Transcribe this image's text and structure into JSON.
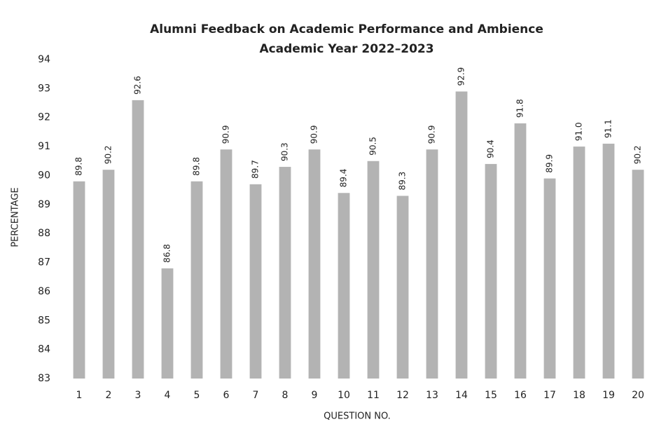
{
  "chart_data": {
    "type": "bar",
    "title": "Alumni Feedback on Academic Performance and Ambience",
    "subtitle": "Academic Year 2022–2023",
    "x_label": "QUESTION NO.",
    "y_label": "PERCENTAGE",
    "categories": [
      "1",
      "2",
      "3",
      "4",
      "5",
      "6",
      "7",
      "8",
      "9",
      "10",
      "11",
      "12",
      "13",
      "14",
      "15",
      "16",
      "17",
      "18",
      "19",
      "20"
    ],
    "values": [
      89.8,
      90.2,
      92.6,
      86.8,
      89.8,
      90.9,
      89.7,
      90.3,
      90.9,
      89.4,
      90.5,
      89.3,
      90.9,
      92.9,
      90.4,
      91.8,
      89.9,
      91.0,
      91.1,
      90.2
    ],
    "value_labels": [
      "89.8",
      "90.2",
      "92.6",
      "86.8",
      "89.8",
      "90.9",
      "89.7",
      "90.3",
      "90.9",
      "89.4",
      "90.5",
      "89.3",
      "90.9",
      "92.9",
      "90.4",
      "91.8",
      "89.9",
      "91.0",
      "91.1",
      "90.2"
    ],
    "color": "#b3b3b3",
    "ylim": [
      83,
      94
    ],
    "yticks": [
      83,
      84,
      85,
      86,
      87,
      88,
      89,
      90,
      91,
      92,
      93,
      94
    ],
    "grid": false
  }
}
